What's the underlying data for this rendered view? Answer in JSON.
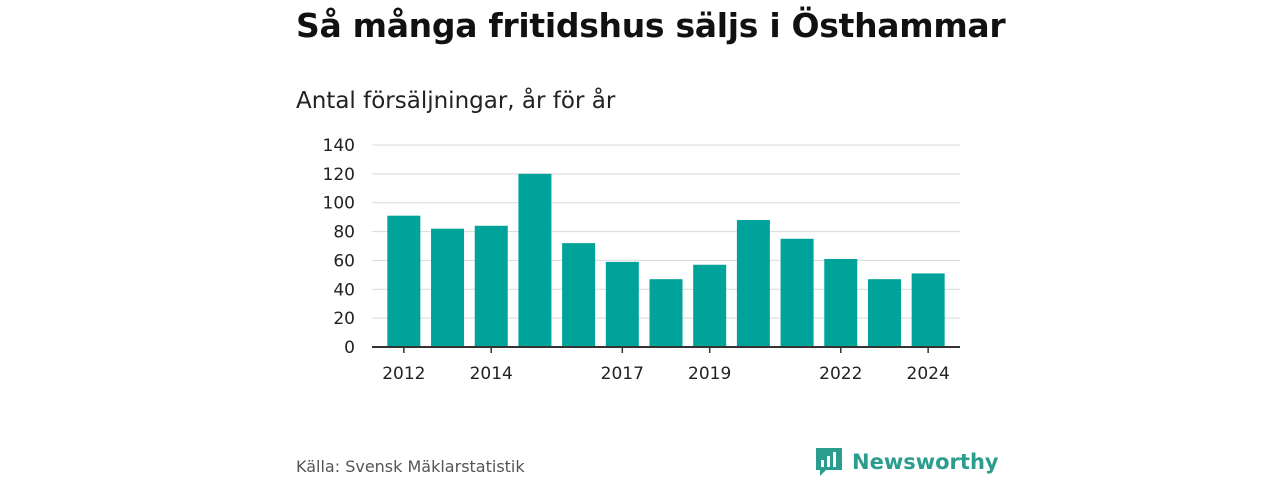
{
  "title": "Så många fritidshus säljs i Östhammar",
  "subtitle": "Antal försäljningar, år för år",
  "source": "Källa: Svensk Mäklarstatistik",
  "brand": "Newsworthy",
  "colors": {
    "bar": "#00a39a",
    "brand": "#2a9d8f"
  },
  "chart_data": {
    "type": "bar",
    "categories": [
      "2012",
      "2013",
      "2014",
      "2015",
      "2016",
      "2017",
      "2018",
      "2019",
      "2020",
      "2021",
      "2022",
      "2023",
      "2024"
    ],
    "x_tick_labels": {
      "2012": "2012",
      "2014": "2014",
      "2017": "2017",
      "2019": "2019",
      "2022": "2022",
      "2024": "2024"
    },
    "values": [
      91,
      82,
      84,
      120,
      72,
      59,
      47,
      57,
      88,
      75,
      61,
      47,
      51
    ],
    "y_ticks": [
      0,
      20,
      40,
      60,
      80,
      100,
      120,
      140
    ],
    "ylim": [
      0,
      140
    ],
    "grid": true
  }
}
